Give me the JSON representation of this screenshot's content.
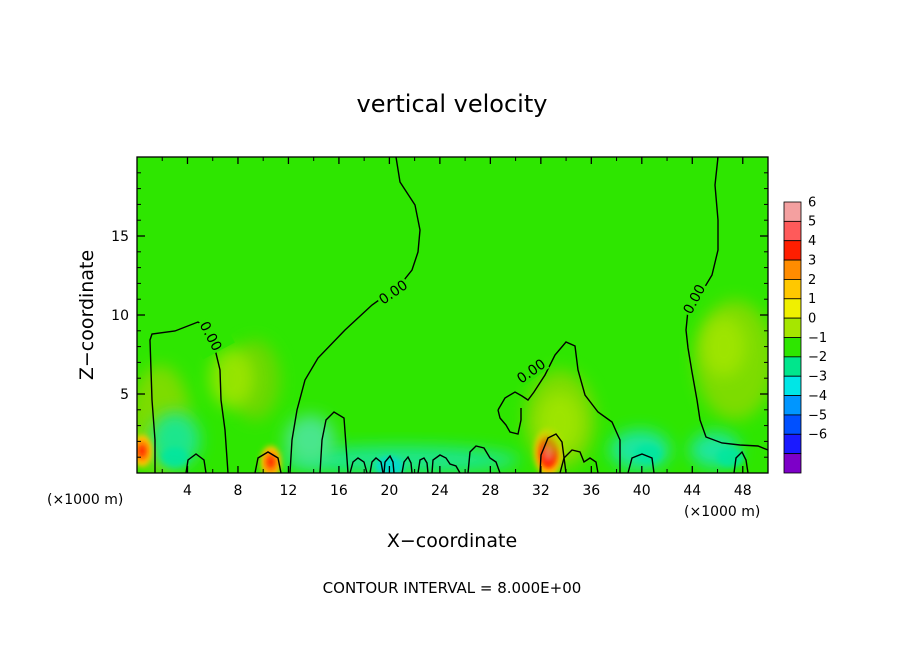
{
  "chart_data": {
    "type": "heatmap",
    "title": "vertical velocity",
    "xlabel": "X−coordinate",
    "ylabel": "Z−coordinate",
    "x_unit": "(×1000 m)",
    "xlim": [
      0,
      50
    ],
    "ylim": [
      0,
      20
    ],
    "xticks": [
      "4",
      "8",
      "12",
      "16",
      "20",
      "24",
      "28",
      "32",
      "36",
      "40",
      "44",
      "48"
    ],
    "yticks": [
      "5",
      "10",
      "15"
    ],
    "contour_interval_text": "CONTOUR INTERVAL = 8.000E+00",
    "contour_labels": [
      "0.00",
      "0.00",
      "0.00",
      "0.00"
    ],
    "colorbar": {
      "levels": [
        "6",
        "5",
        "4",
        "3",
        "2",
        "1",
        "0",
        "−1",
        "−2",
        "−3",
        "−4",
        "−5",
        "−6"
      ],
      "colors": [
        "#f4a0a0",
        "#ff5a5a",
        "#ff1e00",
        "#ff8c00",
        "#ffc800",
        "#f0f000",
        "#a6e600",
        "#2ee600",
        "#00e68c",
        "#00e6e6",
        "#0096ff",
        "#0050ff",
        "#1a1aff",
        "#7d00c8"
      ]
    },
    "background_value": 0,
    "features": [
      {
        "name": "updraft",
        "x": 32.6,
        "z": 1.3,
        "value": 5
      },
      {
        "name": "updraft",
        "x": 10.6,
        "z": 0.7,
        "value": 4
      },
      {
        "name": "updraft",
        "x": 0.4,
        "z": 1.4,
        "value": 4
      },
      {
        "name": "weak updraft",
        "x": 33.5,
        "z": 3.2,
        "value": 1
      },
      {
        "name": "weak updraft",
        "x": 46.5,
        "z": 8.0,
        "value": 1
      },
      {
        "name": "weak updraft",
        "x": 7.5,
        "z": 6.0,
        "value": 1
      },
      {
        "name": "downdraft",
        "x": 20.0,
        "z": 0.4,
        "value": -2
      },
      {
        "name": "downdraft",
        "x": 3.0,
        "z": 1.0,
        "value": -1
      },
      {
        "name": "downdraft",
        "x": 40.5,
        "z": 1.2,
        "value": -1
      },
      {
        "name": "downdraft",
        "x": 47.0,
        "z": 1.0,
        "value": -1
      }
    ]
  }
}
